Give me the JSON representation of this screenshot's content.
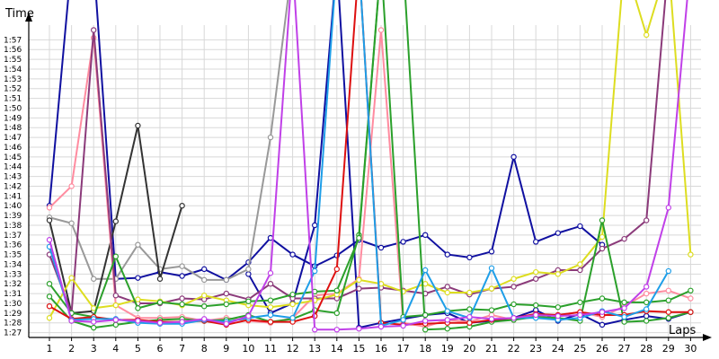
{
  "chart_data": {
    "type": "line",
    "title": "",
    "ylabel": "Time",
    "xlabel": "Laps",
    "ylim_seconds": [
      86.5,
      118.5
    ],
    "xlim": [
      1,
      30
    ],
    "grid": true,
    "legend": "none",
    "y_ticks": [
      "1:27",
      "1:28",
      "1:29",
      "1:30",
      "1:31",
      "1:32",
      "1:33",
      "1:34",
      "1:35",
      "1:36",
      "1:37",
      "1:38",
      "1:39",
      "1:40",
      "1:41",
      "1:42",
      "1:43",
      "1:44",
      "1:45",
      "1:46",
      "1:47",
      "1:48",
      "1:49",
      "1:50",
      "1:51",
      "1:52",
      "1:53",
      "1:54",
      "1:55",
      "1:56",
      "1:57"
    ],
    "x": [
      1,
      2,
      3,
      4,
      5,
      6,
      7,
      8,
      9,
      10,
      11,
      12,
      13,
      14,
      15,
      16,
      17,
      18,
      19,
      20,
      21,
      22,
      23,
      24,
      25,
      26,
      27,
      28,
      29,
      30
    ],
    "series": [
      {
        "color": "#1010a0",
        "values": [
          100,
          125,
          125,
          92.5,
          92.6,
          93.2,
          92.8,
          93.5,
          92.4,
          94.2,
          96.7,
          95,
          93.8,
          94.9,
          96.5,
          95.7,
          96.3,
          97,
          95,
          94.7,
          95.3,
          105,
          96.3,
          97.2,
          97.9,
          96,
          null,
          null,
          null,
          null
        ]
      },
      {
        "color": "#1010a0",
        "values": [
          null,
          null,
          null,
          null,
          null,
          null,
          null,
          null,
          null,
          93,
          89,
          90,
          98,
          125,
          87.5,
          88,
          88.4,
          88.8,
          89,
          88,
          88.2,
          88.5,
          89.3,
          88.2,
          88.9,
          87.8,
          88.3,
          88.7,
          88.4,
          89.1
        ]
      },
      {
        "color": "#999999",
        "values": [
          98.8,
          98.2,
          92.5,
          92.5,
          96,
          93.5,
          93.8,
          92.4,
          92.4,
          93.5,
          107,
          125,
          null,
          null,
          null,
          null,
          null,
          null,
          null,
          null,
          null,
          null,
          null,
          null,
          null,
          null,
          null,
          null,
          null,
          null
        ]
      },
      {
        "color": "#333333",
        "values": [
          98.5,
          89,
          89.2,
          98.4,
          108.2,
          92.5,
          100,
          null,
          null,
          null,
          null,
          null,
          null,
          null,
          null,
          null,
          null,
          null,
          null,
          null,
          null,
          null,
          null,
          null,
          null,
          null,
          null,
          null,
          null,
          null
        ]
      },
      {
        "color": "#ff8ca0",
        "values": [
          99.8,
          102,
          117.2,
          89.8,
          88.5,
          88.5,
          88.6,
          88.2,
          88.5,
          88.2,
          88,
          88.5,
          90.8,
          91,
          92.5,
          118,
          88,
          87.6,
          88.3,
          88.1,
          88.8,
          88.3,
          88.7,
          88.8,
          89.1,
          88.6,
          89.7,
          91,
          91.3,
          90.5
        ]
      },
      {
        "color": "#8b3a7a",
        "values": [
          95,
          89,
          118,
          90.8,
          90,
          90,
          90.5,
          90.4,
          91,
          90.4,
          92,
          90.5,
          90.5,
          90.5,
          91.5,
          91.6,
          91.3,
          91,
          91.7,
          90.9,
          91.5,
          91.7,
          92.5,
          93.4,
          93.4,
          95.6,
          96.6,
          98.5,
          125,
          125
        ]
      },
      {
        "color": "#dddd20",
        "values": [
          88.5,
          92.6,
          89.5,
          89.8,
          90.4,
          90.2,
          89.8,
          90.8,
          90.3,
          89.8,
          89.6,
          89.9,
          90.3,
          90.9,
          92.4,
          92,
          91.2,
          92,
          91.1,
          91.1,
          91.5,
          92.5,
          93.2,
          93,
          94,
          96.8,
          125,
          117.5,
          125,
          95
        ]
      },
      {
        "color": "#2ba02b",
        "values": [
          90.7,
          88.2,
          87.5,
          87.8,
          88.1,
          88.3,
          88.4,
          88.2,
          88.3,
          88.8,
          88.1,
          88.4,
          89.3,
          89,
          97,
          125,
          125,
          87.3,
          87.4,
          87.6,
          88.1,
          88.3,
          88.6,
          88.5,
          88.2,
          98.5,
          88.1,
          88.2,
          88.5,
          89.1
        ]
      },
      {
        "color": "#2ba02b",
        "values": [
          92,
          89,
          88.6,
          94.8,
          89.5,
          90.1,
          89.9,
          89.7,
          89.9,
          90.2,
          90.3,
          90.9,
          91.2,
          91.3,
          96.7,
          125,
          88.6,
          88.8,
          89.2,
          89.4,
          89.3,
          89.9,
          89.8,
          89.6,
          90.1,
          90.5,
          90.1,
          90.1,
          90.3,
          91.3
        ]
      },
      {
        "color": "#dd1010",
        "values": [
          89.7,
          88.4,
          88.6,
          88.3,
          88.3,
          88.1,
          88.1,
          88.2,
          87.8,
          88.3,
          88.1,
          88.1,
          88.7,
          93.5,
          125,
          88,
          87.8,
          87.9,
          88,
          88,
          88.3,
          88.5,
          88.9,
          88.8,
          89.1,
          88.8,
          88.8,
          89.2,
          89.1,
          89.1
        ]
      },
      {
        "color": "#1e9ee8",
        "values": [
          95.8,
          88.3,
          88.4,
          88.4,
          88,
          87.9,
          87.9,
          88.3,
          88.1,
          88.5,
          88.8,
          88.5,
          93.3,
          125,
          125,
          87.7,
          88.3,
          93.4,
          89.2,
          88.5,
          93.6,
          88.5,
          88.5,
          88.3,
          88.5,
          89.2,
          88.6,
          89.4,
          93.3,
          null
        ]
      },
      {
        "color": "#c040e8",
        "values": [
          96.5,
          88.2,
          88.1,
          88.3,
          88.2,
          88,
          88.1,
          88.4,
          87.9,
          88.7,
          93.1,
          125,
          87.3,
          87.3,
          87.4,
          87.6,
          87.7,
          88.2,
          88.3,
          88.6,
          88.4,
          88.5,
          88.8,
          88.7,
          88.8,
          89.1,
          89.5,
          91.7,
          99.8,
          125
        ]
      }
    ]
  }
}
